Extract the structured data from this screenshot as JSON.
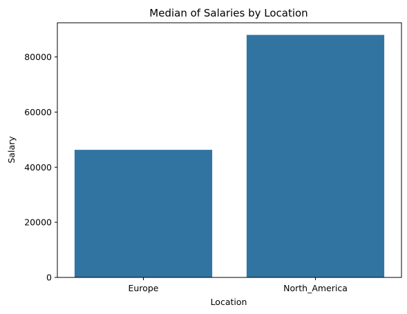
{
  "chart_data": {
    "type": "bar",
    "title": "Median of Salaries by Location",
    "xlabel": "Location",
    "ylabel": "Salary",
    "categories": [
      "Europe",
      "North_America"
    ],
    "values": [
      46300,
      88000
    ],
    "ylim": [
      0,
      92400
    ],
    "yticks": [
      0,
      20000,
      40000,
      60000,
      80000
    ],
    "bar_color": "#3274a1",
    "grid": false,
    "legend": "none"
  }
}
